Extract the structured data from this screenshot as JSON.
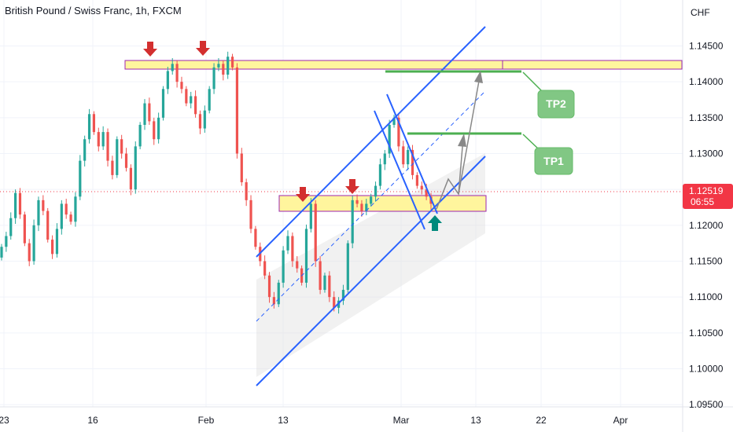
{
  "header": {
    "title": "British Pound / Swiss Franc, 1h, FXCM"
  },
  "chart_data": {
    "type": "candlestick",
    "currency": "CHF",
    "y_ticks": [
      "1.14500",
      "1.14000",
      "1.13500",
      "1.13000",
      "1.12500",
      "1.12000",
      "1.11500",
      "1.11000",
      "1.10500",
      "1.10000",
      "1.09500"
    ],
    "x_ticks": [
      "23",
      "16",
      "Feb",
      "13",
      "Mar",
      "13",
      "22",
      "Apr"
    ],
    "ylim": [
      1.0948,
      1.1502
    ],
    "series_close": [
      1.117,
      1.1185,
      1.121,
      1.1245,
      1.1215,
      1.1175,
      1.115,
      1.12,
      1.1235,
      1.122,
      1.118,
      1.116,
      1.1195,
      1.123,
      1.1215,
      1.1205,
      1.124,
      1.129,
      1.132,
      1.1355,
      1.133,
      1.131,
      1.133,
      1.129,
      1.127,
      1.132,
      1.13,
      1.128,
      1.125,
      1.131,
      1.134,
      1.137,
      1.1345,
      1.132,
      1.135,
      1.139,
      1.1415,
      1.1425,
      1.14,
      1.139,
      1.137,
      1.138,
      1.1355,
      1.1335,
      1.136,
      1.139,
      1.142,
      1.1425,
      1.141,
      1.1435,
      1.142,
      1.13,
      1.126,
      1.1235,
      1.1195,
      1.117,
      1.115,
      1.113,
      1.11,
      1.109,
      1.112,
      1.1165,
      1.1185,
      1.115,
      1.114,
      1.112,
      1.1195,
      1.123,
      1.115,
      1.111,
      1.113,
      1.11,
      1.1085,
      1.1095,
      1.111,
      1.1175,
      1.1235,
      1.123,
      1.122,
      1.123,
      1.124,
      1.1255,
      1.1285,
      1.13,
      1.134,
      1.135,
      1.131,
      1.1285,
      1.1305,
      1.127,
      1.1255,
      1.125,
      1.124,
      1.123
    ],
    "current_price": "1.12519",
    "countdown": "06:55",
    "annotations": {
      "tp1": "TP1",
      "tp2": "TP2"
    },
    "colors": {
      "up": "#26a69a",
      "down": "#ef5350",
      "channel": "#2962ff",
      "zone": "#fff59d",
      "zone_border": "#9c27b0",
      "target": "#4caf50",
      "tp_box": "#81c784",
      "price_tag": "#f23645",
      "arrow_down": "#d32f2f",
      "arrow_up": "#00897b"
    }
  }
}
